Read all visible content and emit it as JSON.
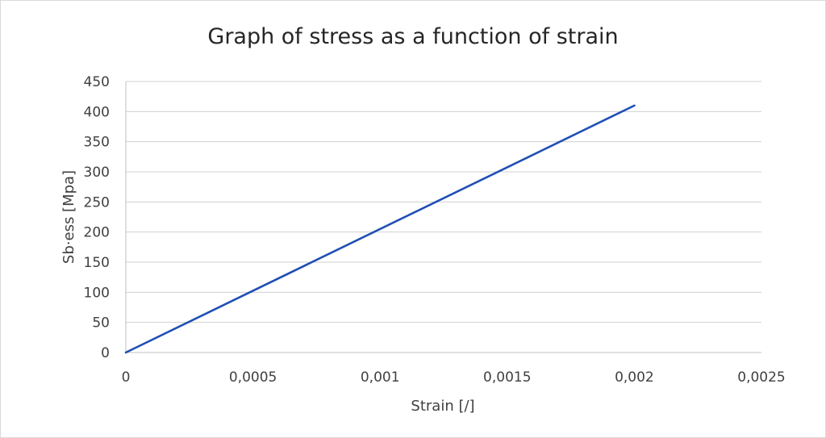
{
  "chart_data": {
    "type": "line",
    "title": "Graph of stress as a function of strain",
    "xlabel": "Strain [/]",
    "ylabel": "Sb·ess [Mpa]",
    "xlim": [
      0,
      0.0025
    ],
    "ylim": [
      0,
      450
    ],
    "x_ticks": [
      "0",
      "0,0005",
      "0,001",
      "0,0015",
      "0,002",
      "0,0025"
    ],
    "y_ticks": [
      "0",
      "50",
      "100",
      "150",
      "200",
      "250",
      "300",
      "350",
      "400",
      "450"
    ],
    "grid": "horizontal",
    "legend": "none",
    "series": [
      {
        "x": [
          0,
          0.002
        ],
        "y": [
          0,
          410
        ],
        "color": "#1f4fb5"
      }
    ]
  }
}
